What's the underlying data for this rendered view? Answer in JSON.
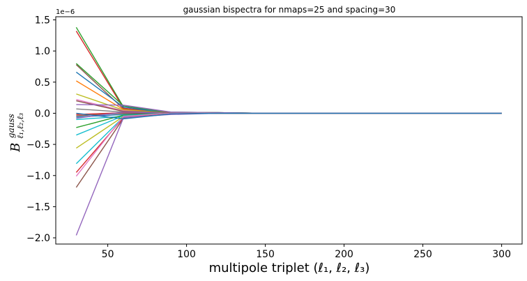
{
  "chart_data": {
    "type": "line",
    "title": "gaussian bispectra for nmaps=25 and spacing=30",
    "xlabel": "multipole triplet (ℓ₁, ℓ₂, ℓ₃)",
    "ylabel": "B",
    "ylabel_superscript": "gauss",
    "ylabel_subscript": "ℓ₁,ℓ₂,ℓ₃",
    "y_offset_label": "1e−6",
    "xlim": [
      17,
      313
    ],
    "ylim": [
      -2.1,
      1.55
    ],
    "x_ticks": [
      50,
      100,
      150,
      200,
      250,
      300
    ],
    "x_tick_labels": [
      "50",
      "100",
      "150",
      "200",
      "250",
      "300"
    ],
    "y_ticks": [
      -2.0,
      -1.5,
      -1.0,
      -0.5,
      0.0,
      0.5,
      1.0,
      1.5
    ],
    "y_tick_labels": [
      "−2.0",
      "−1.5",
      "−1.0",
      "−0.5",
      "0.0",
      "0.5",
      "1.0",
      "1.5"
    ],
    "grid": false,
    "legend": "none",
    "x": [
      30,
      60,
      90,
      120,
      150,
      180,
      210,
      240,
      270,
      300
    ],
    "series": [
      {
        "color": "#2ca02c",
        "values": [
          1.38,
          0.1,
          0.02,
          0.01,
          0.0,
          0.0,
          0.0,
          0.0,
          0.0,
          0.0
        ]
      },
      {
        "color": "#d62728",
        "values": [
          1.32,
          0.08,
          0.01,
          0.01,
          0.0,
          0.0,
          0.0,
          0.0,
          0.0,
          0.0
        ]
      },
      {
        "color": "#2ca02c",
        "values": [
          0.8,
          0.12,
          0.01,
          0.01,
          0.0,
          0.0,
          0.0,
          0.0,
          0.0,
          0.0
        ]
      },
      {
        "color": "#8c564b",
        "values": [
          0.78,
          0.07,
          0.01,
          0.0,
          0.0,
          0.0,
          0.0,
          0.0,
          0.0,
          0.0
        ]
      },
      {
        "color": "#1f77b4",
        "values": [
          0.66,
          0.1,
          0.0,
          0.01,
          0.0,
          0.0,
          0.0,
          0.0,
          0.0,
          0.0
        ]
      },
      {
        "color": "#ff7f0e",
        "values": [
          0.52,
          0.06,
          0.0,
          0.0,
          0.0,
          0.0,
          0.0,
          0.0,
          0.0,
          0.0
        ]
      },
      {
        "color": "#bcbd22",
        "values": [
          0.31,
          0.05,
          0.01,
          0.0,
          0.0,
          0.0,
          0.0,
          0.0,
          0.0,
          0.0
        ]
      },
      {
        "color": "#e377c2",
        "values": [
          0.22,
          0.04,
          0.0,
          0.0,
          0.0,
          0.0,
          0.0,
          0.0,
          0.0,
          0.0
        ]
      },
      {
        "color": "#8c564b",
        "values": [
          0.2,
          0.03,
          0.01,
          0.0,
          0.0,
          0.0,
          0.0,
          0.0,
          0.0,
          0.0
        ]
      },
      {
        "color": "#9467bd",
        "values": [
          0.14,
          0.13,
          0.02,
          0.01,
          0.0,
          0.0,
          0.0,
          0.0,
          0.0,
          0.0
        ]
      },
      {
        "color": "#7f7f7f",
        "values": [
          0.07,
          0.02,
          0.0,
          0.0,
          0.0,
          0.0,
          0.0,
          0.0,
          0.0,
          0.0
        ]
      },
      {
        "color": "#d62728",
        "values": [
          -0.02,
          0.01,
          0.0,
          0.0,
          0.0,
          0.0,
          0.0,
          0.0,
          0.0,
          0.0
        ]
      },
      {
        "color": "#8c564b",
        "values": [
          -0.04,
          0.0,
          -0.01,
          0.0,
          0.0,
          0.0,
          0.0,
          0.0,
          0.0,
          0.0
        ]
      },
      {
        "color": "#1f77b4",
        "values": [
          -0.06,
          -0.02,
          0.0,
          0.0,
          0.0,
          0.0,
          0.0,
          0.0,
          0.0,
          0.0
        ]
      },
      {
        "color": "#9467bd",
        "values": [
          -0.08,
          0.02,
          0.0,
          0.0,
          0.0,
          0.0,
          0.0,
          0.0,
          0.0,
          0.0
        ]
      },
      {
        "color": "#17becf",
        "values": [
          -0.1,
          -0.05,
          0.0,
          0.0,
          0.0,
          0.0,
          0.0,
          0.0,
          0.0,
          0.0
        ]
      },
      {
        "color": "#2ca02c",
        "values": [
          -0.23,
          -0.03,
          0.0,
          0.0,
          0.0,
          0.0,
          0.0,
          0.0,
          0.0,
          0.0
        ]
      },
      {
        "color": "#17becf",
        "values": [
          -0.35,
          -0.04,
          0.0,
          0.0,
          0.0,
          0.0,
          0.0,
          0.0,
          0.0,
          0.0
        ]
      },
      {
        "color": "#bcbd22",
        "values": [
          -0.56,
          -0.05,
          0.0,
          0.0,
          0.0,
          0.0,
          0.0,
          0.0,
          0.0,
          0.0
        ]
      },
      {
        "color": "#17becf",
        "values": [
          -0.81,
          -0.06,
          -0.01,
          0.0,
          0.0,
          0.0,
          0.0,
          0.0,
          0.0,
          0.0
        ]
      },
      {
        "color": "#d62728",
        "values": [
          -0.95,
          -0.07,
          -0.01,
          0.0,
          0.0,
          0.0,
          0.0,
          0.0,
          0.0,
          0.0
        ]
      },
      {
        "color": "#e377c2",
        "values": [
          -1.01,
          -0.05,
          0.0,
          0.0,
          0.0,
          0.0,
          0.0,
          0.0,
          0.0,
          0.0
        ]
      },
      {
        "color": "#8c564b",
        "values": [
          -1.19,
          -0.08,
          -0.01,
          0.0,
          0.0,
          0.0,
          0.0,
          0.0,
          0.0,
          0.0
        ]
      },
      {
        "color": "#9467bd",
        "values": [
          -1.96,
          -0.07,
          -0.02,
          0.0,
          0.0,
          0.0,
          0.0,
          0.0,
          0.0,
          0.0
        ]
      },
      {
        "color": "#1f77b4",
        "values": [
          0.0,
          -0.09,
          -0.01,
          0.0,
          0.0,
          0.0,
          0.0,
          0.0,
          0.0,
          0.0
        ]
      }
    ]
  }
}
